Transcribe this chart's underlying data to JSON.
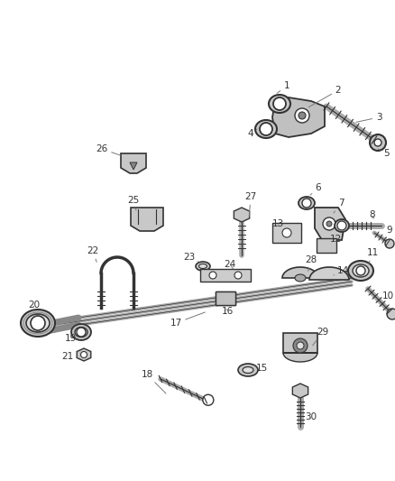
{
  "bg_color": "#ffffff",
  "line_color": "#555555",
  "dark_color": "#333333",
  "label_color": "#333333",
  "gray_fill": "#c8c8c8",
  "light_gray": "#e0e0e0",
  "fig_w": 4.38,
  "fig_h": 5.33,
  "dpi": 100
}
